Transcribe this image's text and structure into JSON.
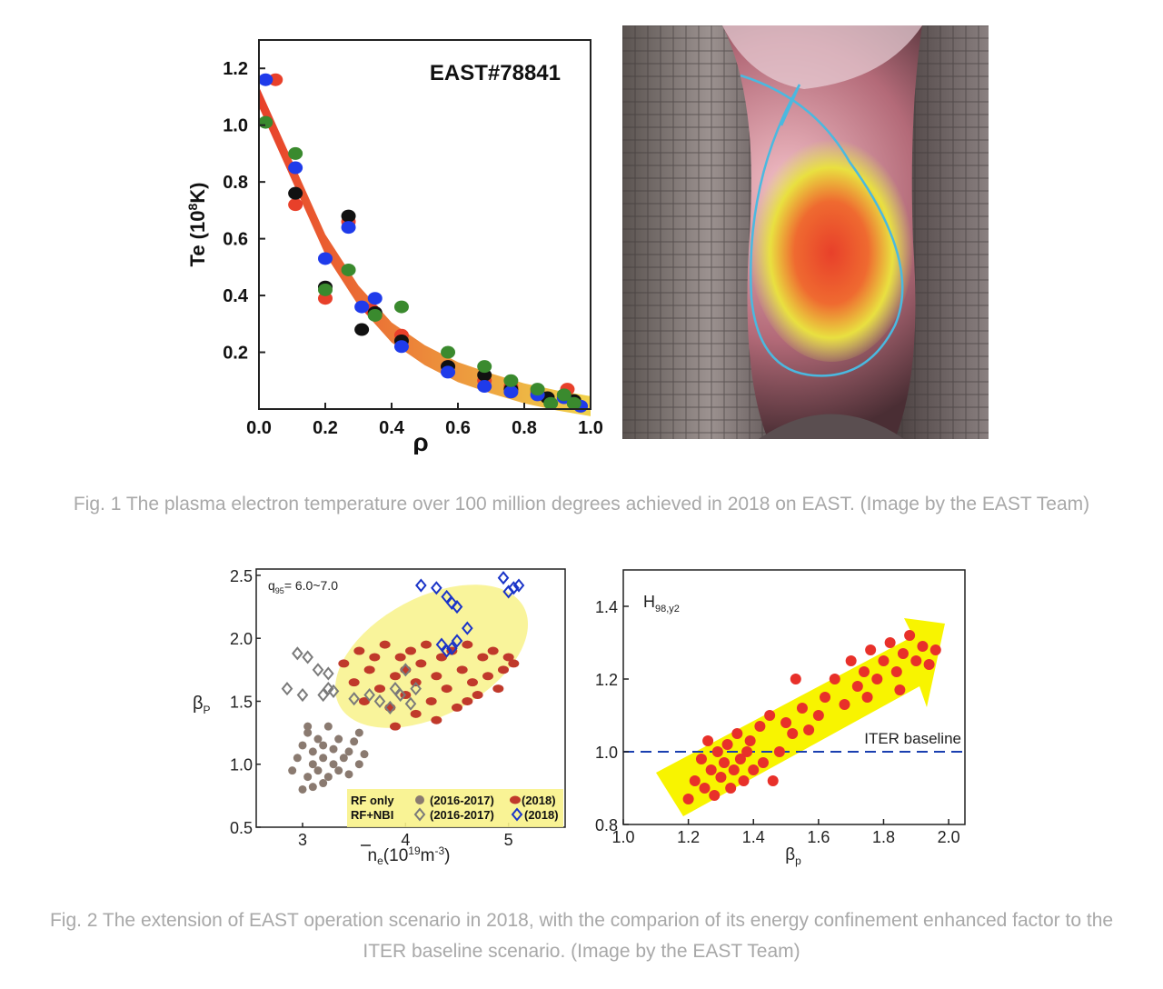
{
  "figure1": {
    "caption": "Fig. 1 The plasma electron temperature over 100 million degrees achieved in 2018 on EAST. (Image by the EAST Team)"
  },
  "figure2": {
    "caption_line1": "Fig. 2 The extension of EAST operation scenario in 2018, with the comparion of its energy confinement enhanced factor to the",
    "caption_line2": "ITER baseline scenario. (Image by the EAST Team)"
  },
  "colors": {
    "red": "#e8402a",
    "black": "#111111",
    "blue": "#1f3bea",
    "green": "#3a8a2e",
    "band_start": "#e8402a",
    "band_end": "#f0d24a",
    "gray": "#8a7a70",
    "gray_diamond": "#7a7a7a",
    "brown_red": "#c0392b",
    "blue_diamond": "#1a34c8",
    "yellow_fill": "#f8f28a",
    "arrow_yellow": "#f8f400",
    "bright_red": "#e8302a",
    "dash_blue": "#1a3fb0"
  },
  "chart_data": [
    {
      "type": "scatter",
      "annotation": "EAST#78841",
      "xlabel": "ρ",
      "ylabel_main": "Te (10",
      "ylabel_sup": "8",
      "ylabel_end": "K)",
      "xlim": [
        0.0,
        1.0
      ],
      "ylim": [
        0.0,
        1.3
      ],
      "xticks": [
        "0.0",
        "0.2",
        "0.4",
        "0.6",
        "0.8",
        "1.0"
      ],
      "yticks": [
        "0.2",
        "0.4",
        "0.6",
        "0.8",
        "1.0",
        "1.2"
      ],
      "band": {
        "x": [
          0.0,
          0.1,
          0.2,
          0.3,
          0.4,
          0.5,
          0.6,
          0.7,
          0.8,
          0.9,
          1.0
        ],
        "y": [
          1.1,
          0.84,
          0.58,
          0.4,
          0.27,
          0.19,
          0.13,
          0.09,
          0.055,
          0.03,
          0.01
        ]
      },
      "series": [
        {
          "color": "red",
          "points": [
            [
              0.05,
              1.16
            ],
            [
              0.11,
              0.72
            ],
            [
              0.2,
              0.39
            ],
            [
              0.27,
              0.66
            ],
            [
              0.34,
              0.35
            ],
            [
              0.43,
              0.26
            ],
            [
              0.57,
              0.15
            ],
            [
              0.68,
              0.1
            ],
            [
              0.76,
              0.08
            ],
            [
              0.84,
              0.06
            ],
            [
              0.93,
              0.07
            ]
          ]
        },
        {
          "color": "black",
          "points": [
            [
              0.11,
              0.76
            ],
            [
              0.2,
              0.43
            ],
            [
              0.27,
              0.68
            ],
            [
              0.31,
              0.28
            ],
            [
              0.35,
              0.34
            ],
            [
              0.43,
              0.24
            ],
            [
              0.57,
              0.15
            ],
            [
              0.68,
              0.12
            ],
            [
              0.76,
              0.07
            ],
            [
              0.87,
              0.04
            ],
            [
              0.95,
              0.03
            ]
          ]
        },
        {
          "color": "blue",
          "points": [
            [
              0.02,
              1.16
            ],
            [
              0.11,
              0.85
            ],
            [
              0.2,
              0.53
            ],
            [
              0.27,
              0.64
            ],
            [
              0.31,
              0.36
            ],
            [
              0.35,
              0.39
            ],
            [
              0.43,
              0.22
            ],
            [
              0.57,
              0.13
            ],
            [
              0.68,
              0.08
            ],
            [
              0.76,
              0.06
            ],
            [
              0.84,
              0.05
            ],
            [
              0.92,
              0.04
            ],
            [
              0.97,
              0.01
            ]
          ]
        },
        {
          "color": "green",
          "points": [
            [
              0.02,
              1.01
            ],
            [
              0.11,
              0.9
            ],
            [
              0.2,
              0.42
            ],
            [
              0.27,
              0.49
            ],
            [
              0.35,
              0.33
            ],
            [
              0.43,
              0.36
            ],
            [
              0.57,
              0.2
            ],
            [
              0.68,
              0.15
            ],
            [
              0.76,
              0.1
            ],
            [
              0.84,
              0.07
            ],
            [
              0.88,
              0.02
            ],
            [
              0.92,
              0.05
            ],
            [
              0.95,
              0.02
            ]
          ]
        }
      ]
    },
    {
      "type": "scatter",
      "annotation_main": "q",
      "annotation_sub": "95",
      "annotation_end": "= 6.0~7.0",
      "xlabel_main": "n",
      "xlabel_sub": "e",
      "xlabel_end": "(10",
      "xlabel_sup": "19",
      "xlabel_tail": "m",
      "xlabel_sup2": "-3",
      "xlabel_close": ")",
      "ylabel_main": "β",
      "ylabel_sub": "P",
      "xlim": [
        2.55,
        5.55
      ],
      "ylim": [
        0.5,
        2.55
      ],
      "xticks": [
        "3",
        "4",
        "5"
      ],
      "yticks": [
        "0.5",
        "1.0",
        "1.5",
        "2.0",
        "2.5"
      ],
      "legend": {
        "row1_label": "RF only",
        "row1_text1": "(2016-2017)",
        "row1_text2": "(2018)",
        "row2_label": "RF+NBI",
        "row2_text1": "(2016-2017)",
        "row2_text2": "(2018)",
        "placement": "bottom-right"
      },
      "series": [
        {
          "marker": "gray-dot",
          "points": [
            [
              2.9,
              0.95
            ],
            [
              2.95,
              1.05
            ],
            [
              3.0,
              0.8
            ],
            [
              3.0,
              1.15
            ],
            [
              3.05,
              0.9
            ],
            [
              3.05,
              1.25
            ],
            [
              3.1,
              1.0
            ],
            [
              3.1,
              1.1
            ],
            [
              3.1,
              0.82
            ],
            [
              3.15,
              1.2
            ],
            [
              3.15,
              0.95
            ],
            [
              3.2,
              1.05
            ],
            [
              3.2,
              1.15
            ],
            [
              3.25,
              0.9
            ],
            [
              3.25,
              1.3
            ],
            [
              3.3,
              1.0
            ],
            [
              3.3,
              1.12
            ],
            [
              3.35,
              1.2
            ],
            [
              3.35,
              0.95
            ],
            [
              3.4,
              1.05
            ],
            [
              3.45,
              1.1
            ],
            [
              3.45,
              0.92
            ],
            [
              3.5,
              1.18
            ],
            [
              3.55,
              1.0
            ],
            [
              3.55,
              1.25
            ],
            [
              3.6,
              1.08
            ],
            [
              3.2,
              0.85
            ],
            [
              3.05,
              1.3
            ]
          ]
        },
        {
          "marker": "red-dot",
          "points": [
            [
              3.4,
              1.8
            ],
            [
              3.5,
              1.65
            ],
            [
              3.55,
              1.9
            ],
            [
              3.6,
              1.5
            ],
            [
              3.65,
              1.75
            ],
            [
              3.7,
              1.85
            ],
            [
              3.75,
              1.6
            ],
            [
              3.8,
              1.95
            ],
            [
              3.85,
              1.45
            ],
            [
              3.9,
              1.7
            ],
            [
              3.95,
              1.85
            ],
            [
              4.0,
              1.55
            ],
            [
              4.05,
              1.9
            ],
            [
              4.1,
              1.65
            ],
            [
              4.1,
              1.4
            ],
            [
              4.15,
              1.8
            ],
            [
              4.2,
              1.95
            ],
            [
              4.25,
              1.5
            ],
            [
              4.3,
              1.7
            ],
            [
              4.35,
              1.85
            ],
            [
              4.4,
              1.6
            ],
            [
              4.45,
              1.9
            ],
            [
              4.5,
              1.45
            ],
            [
              4.55,
              1.75
            ],
            [
              4.6,
              1.95
            ],
            [
              4.65,
              1.65
            ],
            [
              4.7,
              1.55
            ],
            [
              4.75,
              1.85
            ],
            [
              4.8,
              1.7
            ],
            [
              4.85,
              1.9
            ],
            [
              4.9,
              1.6
            ],
            [
              4.95,
              1.75
            ],
            [
              5.0,
              1.85
            ],
            [
              5.05,
              1.8
            ],
            [
              4.3,
              1.35
            ],
            [
              3.9,
              1.3
            ],
            [
              4.6,
              1.5
            ],
            [
              4.0,
              1.75
            ]
          ]
        },
        {
          "marker": "gray-diamond",
          "points": [
            [
              2.85,
              1.6
            ],
            [
              2.95,
              1.88
            ],
            [
              3.0,
              1.55
            ],
            [
              3.05,
              1.85
            ],
            [
              3.15,
              1.75
            ],
            [
              3.2,
              1.55
            ],
            [
              3.25,
              1.6
            ],
            [
              3.25,
              1.72
            ],
            [
              3.3,
              1.58
            ],
            [
              3.5,
              1.52
            ],
            [
              3.65,
              1.55
            ],
            [
              3.75,
              1.5
            ],
            [
              3.85,
              1.45
            ],
            [
              3.9,
              1.6
            ],
            [
              3.95,
              1.55
            ],
            [
              4.0,
              1.75
            ],
            [
              4.05,
              1.48
            ],
            [
              4.1,
              1.6
            ]
          ]
        },
        {
          "marker": "blue-diamond",
          "points": [
            [
              4.15,
              2.42
            ],
            [
              4.3,
              2.4
            ],
            [
              4.4,
              2.33
            ],
            [
              4.45,
              2.28
            ],
            [
              4.5,
              2.25
            ],
            [
              4.6,
              2.08
            ],
            [
              4.35,
              1.95
            ],
            [
              4.45,
              1.92
            ],
            [
              4.5,
              1.98
            ],
            [
              4.4,
              1.9
            ],
            [
              4.95,
              2.48
            ],
            [
              5.0,
              2.37
            ],
            [
              5.05,
              2.4
            ],
            [
              5.1,
              2.42
            ]
          ]
        }
      ]
    },
    {
      "type": "scatter",
      "annotation_main": "H",
      "annotation_sub": "98,y2",
      "baseline_label": "ITER baseline",
      "baseline_value": 1.0,
      "xlabel_main": "β",
      "xlabel_sub": "p",
      "xlim": [
        1.0,
        2.05
      ],
      "ylim": [
        0.8,
        1.5
      ],
      "xticks": [
        "1.0",
        "1.2",
        "1.4",
        "1.6",
        "1.8",
        "2.0"
      ],
      "yticks": [
        "0.8",
        "1.0",
        "1.2",
        "1.4"
      ],
      "series": [
        {
          "marker": "red-dot",
          "points": [
            [
              1.2,
              0.87
            ],
            [
              1.22,
              0.92
            ],
            [
              1.24,
              0.98
            ],
            [
              1.25,
              0.9
            ],
            [
              1.26,
              1.03
            ],
            [
              1.27,
              0.95
            ],
            [
              1.28,
              0.88
            ],
            [
              1.29,
              1.0
            ],
            [
              1.3,
              0.93
            ],
            [
              1.31,
              0.97
            ],
            [
              1.32,
              1.02
            ],
            [
              1.33,
              0.9
            ],
            [
              1.34,
              0.95
            ],
            [
              1.35,
              1.05
            ],
            [
              1.36,
              0.98
            ],
            [
              1.37,
              0.92
            ],
            [
              1.38,
              1.0
            ],
            [
              1.39,
              1.03
            ],
            [
              1.4,
              0.95
            ],
            [
              1.42,
              1.07
            ],
            [
              1.43,
              0.97
            ],
            [
              1.45,
              1.1
            ],
            [
              1.46,
              0.92
            ],
            [
              1.48,
              1.0
            ],
            [
              1.5,
              1.08
            ],
            [
              1.52,
              1.05
            ],
            [
              1.53,
              1.2
            ],
            [
              1.55,
              1.12
            ],
            [
              1.57,
              1.06
            ],
            [
              1.6,
              1.1
            ],
            [
              1.62,
              1.15
            ],
            [
              1.65,
              1.2
            ],
            [
              1.68,
              1.13
            ],
            [
              1.7,
              1.25
            ],
            [
              1.72,
              1.18
            ],
            [
              1.74,
              1.22
            ],
            [
              1.76,
              1.28
            ],
            [
              1.78,
              1.2
            ],
            [
              1.8,
              1.25
            ],
            [
              1.82,
              1.3
            ],
            [
              1.84,
              1.22
            ],
            [
              1.86,
              1.27
            ],
            [
              1.88,
              1.32
            ],
            [
              1.9,
              1.25
            ],
            [
              1.92,
              1.29
            ],
            [
              1.94,
              1.24
            ],
            [
              1.96,
              1.28
            ],
            [
              1.85,
              1.17
            ],
            [
              1.75,
              1.15
            ]
          ]
        }
      ]
    }
  ],
  "photo": {
    "description_icon": "tokamak-photo"
  }
}
